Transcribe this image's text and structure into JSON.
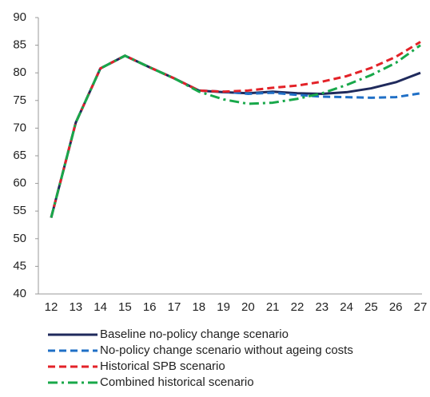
{
  "chart_data": {
    "type": "line",
    "categories": [
      "12",
      "13",
      "14",
      "15",
      "16",
      "17",
      "18",
      "19",
      "20",
      "21",
      "22",
      "23",
      "24",
      "25",
      "26",
      "27"
    ],
    "ylim": [
      40,
      90
    ],
    "yticks": [
      40,
      45,
      50,
      55,
      60,
      65,
      70,
      75,
      80,
      85,
      90
    ],
    "series": [
      {
        "name": "Baseline no-policy change scenario",
        "color": "#1f2a5c",
        "style": "solid",
        "values": [
          53.8,
          71,
          80.8,
          83.1,
          81,
          79,
          76.8,
          76.5,
          76.3,
          76.6,
          76.3,
          76.2,
          76.5,
          77.2,
          78.3,
          80
        ]
      },
      {
        "name": "No-policy change scenario without ageing costs",
        "color": "#1f6fc6",
        "style": "dashed",
        "values": [
          53.8,
          71,
          80.8,
          83.1,
          81,
          79,
          76.8,
          76.6,
          76.2,
          76.4,
          76.0,
          75.7,
          75.6,
          75.5,
          75.6,
          76.3
        ]
      },
      {
        "name": "Historical SPB scenario",
        "color": "#e32228",
        "style": "dashed",
        "values": [
          53.8,
          71,
          80.8,
          83.1,
          81,
          79,
          76.8,
          76.6,
          76.8,
          77.3,
          77.7,
          78.4,
          79.4,
          80.9,
          82.9,
          85.6
        ]
      },
      {
        "name": "Combined historical scenario",
        "color": "#18a84a",
        "style": "dashdot",
        "values": [
          53.8,
          71,
          80.8,
          83.1,
          81,
          79,
          76.6,
          75.2,
          74.4,
          74.6,
          75.3,
          76.3,
          77.8,
          79.6,
          81.8,
          85.0
        ]
      }
    ]
  }
}
